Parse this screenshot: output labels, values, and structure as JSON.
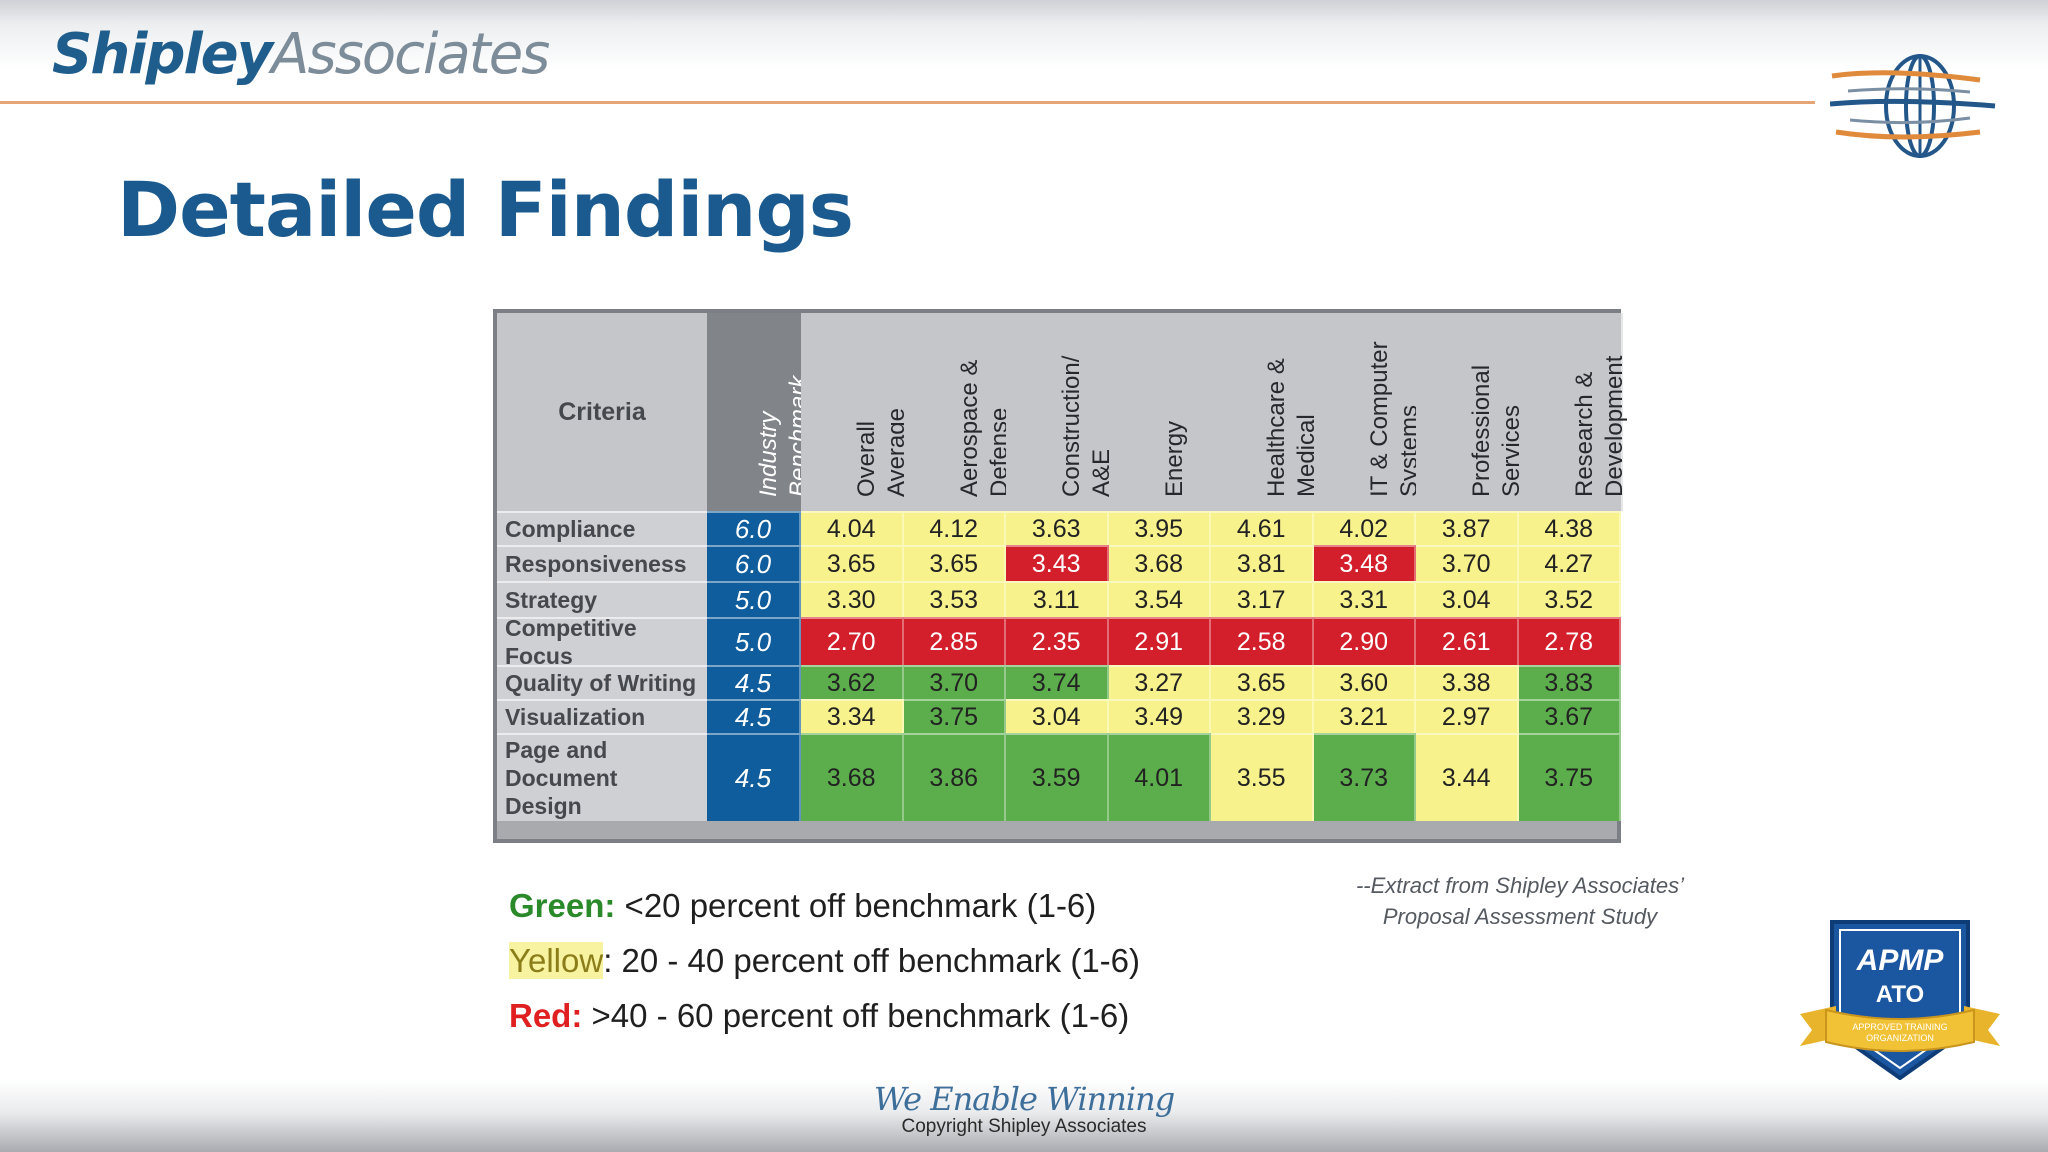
{
  "header": {
    "logo_part1": "Shipley",
    "logo_part2": "Associates",
    "globe_icon": "globe-logo-icon"
  },
  "slide": {
    "title": "Detailed Findings"
  },
  "table": {
    "criteria_header": "Criteria",
    "columns": [
      "Industry\nBenchmark",
      "Overall\nAverage",
      "Aerospace &\nDefense",
      "Construction/\nA&E",
      "Energy",
      "Healthcare &\nMedical",
      "IT & Computer\nSystems",
      "Professional\nServices",
      "Research &\nDevelopment"
    ],
    "rows": [
      {
        "label": "Compliance",
        "values": [
          "6.0",
          "4.04",
          "4.12",
          "3.63",
          "3.95",
          "4.61",
          "4.02",
          "3.87",
          "4.38"
        ],
        "colors": [
          "blue",
          "yellow",
          "yellow",
          "yellow",
          "yellow",
          "yellow",
          "yellow",
          "yellow",
          "yellow"
        ]
      },
      {
        "label": "Responsiveness",
        "values": [
          "6.0",
          "3.65",
          "3.65",
          "3.43",
          "3.68",
          "3.81",
          "3.48",
          "3.70",
          "4.27"
        ],
        "colors": [
          "blue",
          "yellow",
          "yellow",
          "red",
          "yellow",
          "yellow",
          "red",
          "yellow",
          "yellow"
        ]
      },
      {
        "label": "Strategy",
        "values": [
          "5.0",
          "3.30",
          "3.53",
          "3.11",
          "3.54",
          "3.17",
          "3.31",
          "3.04",
          "3.52"
        ],
        "colors": [
          "blue",
          "yellow",
          "yellow",
          "yellow",
          "yellow",
          "yellow",
          "yellow",
          "yellow",
          "yellow"
        ]
      },
      {
        "label": "Competitive\nFocus",
        "values": [
          "5.0",
          "2.70",
          "2.85",
          "2.35",
          "2.91",
          "2.58",
          "2.90",
          "2.61",
          "2.78"
        ],
        "colors": [
          "blue",
          "red",
          "red",
          "red",
          "red",
          "red",
          "red",
          "red",
          "red"
        ]
      },
      {
        "label": "Quality of Writing",
        "values": [
          "4.5",
          "3.62",
          "3.70",
          "3.74",
          "3.27",
          "3.65",
          "3.60",
          "3.38",
          "3.83"
        ],
        "colors": [
          "blue",
          "green",
          "green",
          "green",
          "yellow",
          "yellow",
          "yellow",
          "yellow",
          "green"
        ]
      },
      {
        "label": "Visualization",
        "values": [
          "4.5",
          "3.34",
          "3.75",
          "3.04",
          "3.49",
          "3.29",
          "3.21",
          "2.97",
          "3.67"
        ],
        "colors": [
          "blue",
          "yellow",
          "green",
          "yellow",
          "yellow",
          "yellow",
          "yellow",
          "yellow",
          "green"
        ]
      },
      {
        "label": "Page and\nDocument\nDesign",
        "values": [
          "4.5",
          "3.68",
          "3.86",
          "3.59",
          "4.01",
          "3.55",
          "3.73",
          "3.44",
          "3.75"
        ],
        "colors": [
          "blue",
          "green",
          "green",
          "green",
          "green",
          "yellow",
          "green",
          "yellow",
          "green"
        ]
      }
    ],
    "palette": {
      "blue": "#0f5d9c",
      "yellow": "#f8f28d",
      "red": "#d21f2b",
      "green": "#5cae4c"
    }
  },
  "legend": {
    "green_key": "Green:",
    "green_text": " <20 percent off benchmark (1-6)",
    "yellow_key": "Yellow",
    "yellow_text": ": 20 - 40 percent off benchmark (1-6)",
    "red_key": "Red:",
    "red_text": " >40 - 60 percent off benchmark (1-6)"
  },
  "extract": {
    "line1": "--Extract from Shipley Associates’",
    "line2": "Proposal Assessment Study"
  },
  "badge": {
    "line1": "APMP",
    "line2": "ATO",
    "line3": "APPROVED TRAINING",
    "line4": "ORGANIZATION"
  },
  "footer": {
    "slogan": "We Enable Winning",
    "copyright": "Copyright Shipley Associates"
  }
}
